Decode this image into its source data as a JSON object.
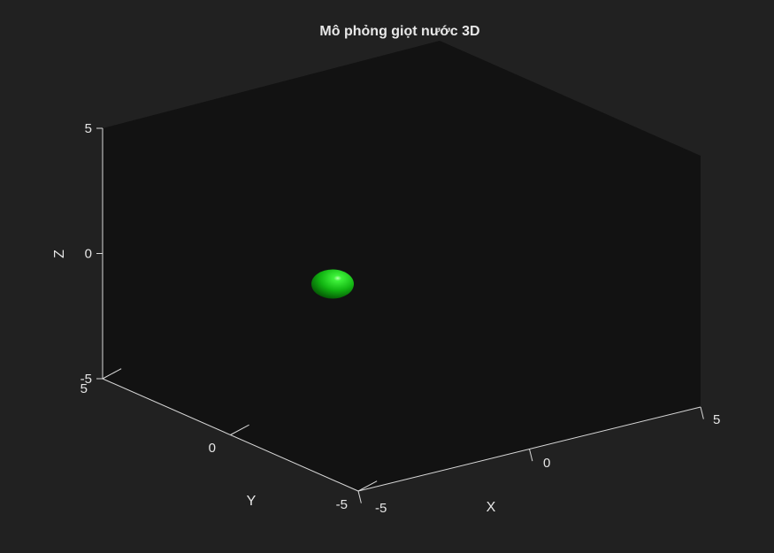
{
  "chart_data": {
    "type": "scatter3d",
    "title": "Mô phỏng giọt nước 3D",
    "xlabel": "X",
    "ylabel": "Y",
    "zlabel": "Z",
    "xlim": [
      -5,
      5
    ],
    "ylim": [
      -5,
      5
    ],
    "zlim": [
      -5,
      5
    ],
    "xticks": [
      "-5",
      "0",
      "5"
    ],
    "yticks": [
      "-5",
      "0",
      "5"
    ],
    "zticks": [
      "-5",
      "0",
      "5"
    ],
    "grid": false,
    "series": [
      {
        "x": [
          0
        ],
        "y": [
          0
        ],
        "z": [
          -0.6
        ],
        "color": "#00cc00"
      }
    ],
    "colors": {
      "background": "#212121",
      "axes_background": "#121212",
      "drop": "#00cc00"
    }
  }
}
